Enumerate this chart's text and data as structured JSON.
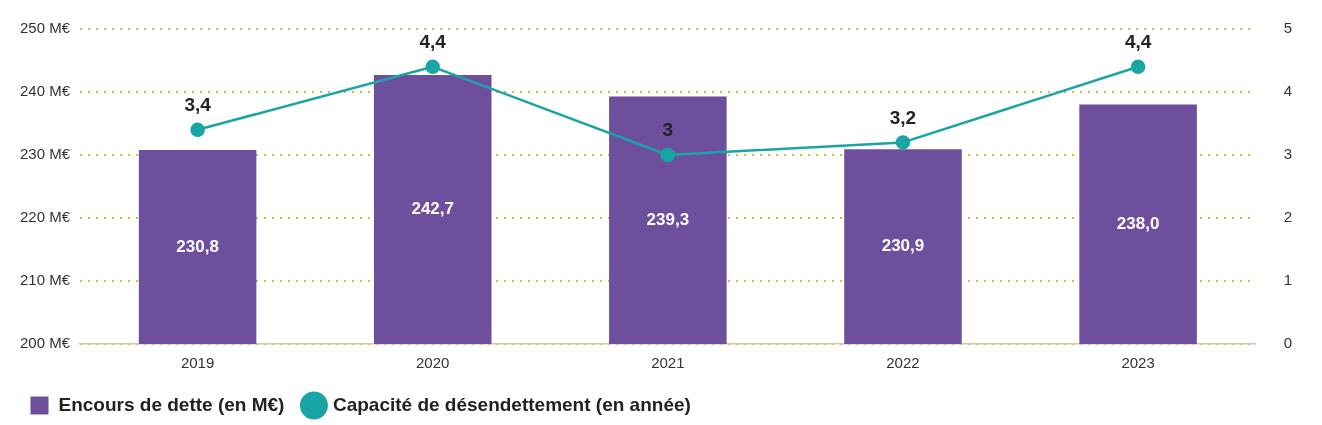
{
  "chart_data": {
    "type": "bar",
    "categories": [
      "2019",
      "2020",
      "2021",
      "2022",
      "2023"
    ],
    "series": [
      {
        "name": "Encours de dette (en M€)",
        "color": "#6e4f9e",
        "values": [
          230.8,
          242.7,
          239.3,
          230.9,
          238.0
        ],
        "value_labels": [
          "230,8",
          "242,7",
          "239,3",
          "230,9",
          "238,0"
        ]
      },
      {
        "name": "Capacité de désendettement (en année)",
        "type": "line",
        "axis": "y2",
        "color": "#1aa5a5",
        "values": [
          3.4,
          4.4,
          3,
          3.2,
          4.4
        ],
        "value_labels": [
          "3,4",
          "4,4",
          "3",
          "3,2",
          "4,4"
        ]
      }
    ],
    "ylim": [
      200,
      250
    ],
    "yticks": [
      {
        "value": 200,
        "label": "200 M€"
      },
      {
        "value": 210,
        "label": "210 M€"
      },
      {
        "value": 220,
        "label": "220 M€"
      },
      {
        "value": 230,
        "label": "230 M€"
      },
      {
        "value": 240,
        "label": "240 M€"
      },
      {
        "value": 250,
        "label": "250 M€"
      }
    ],
    "y2lim": [
      0,
      5
    ],
    "y2ticks": [
      0,
      1,
      2,
      3,
      4,
      5
    ],
    "grid": "y",
    "legend": "bottom left",
    "marker": "circle",
    "line_style": "solid"
  }
}
